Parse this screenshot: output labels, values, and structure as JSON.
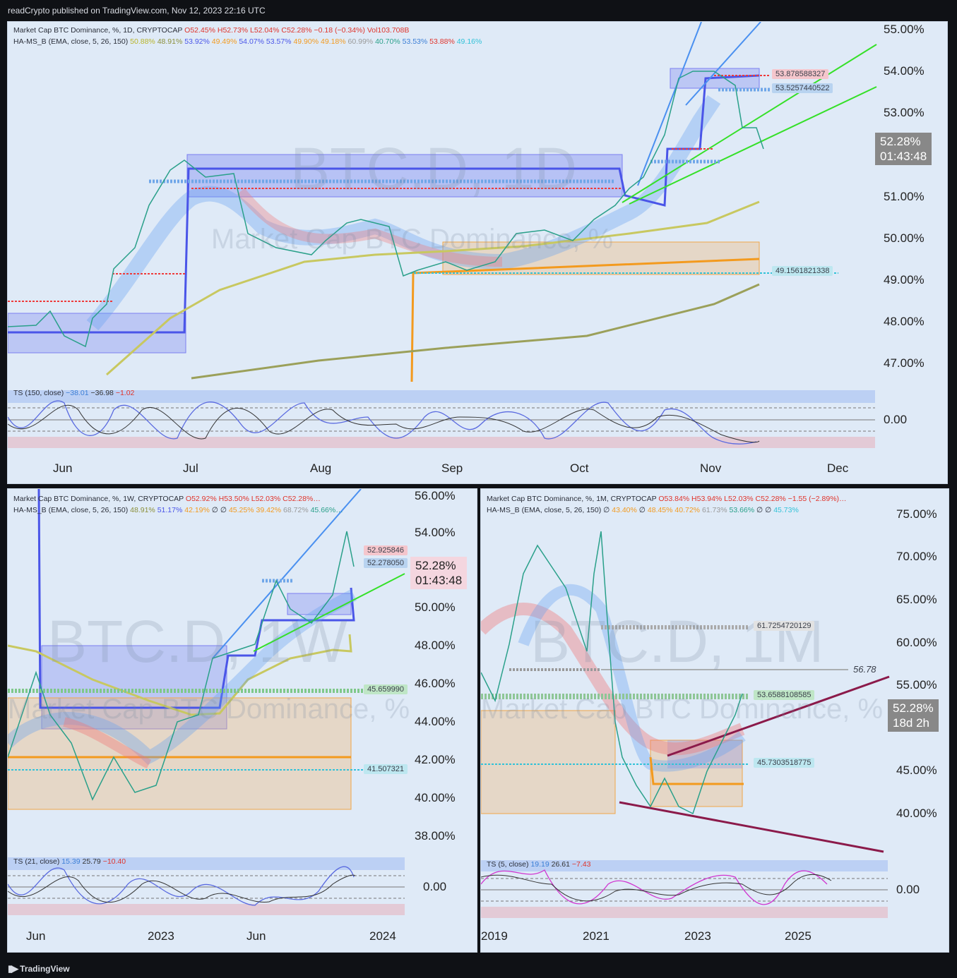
{
  "header": {
    "published": "readCrypto published on TradingView.com, Nov 12, 2023 22:16 UTC"
  },
  "footer": {
    "brand": "TradingView"
  },
  "panel_daily": {
    "title": "Market Cap BTC Dominance, %, 1D, CRYPTOCAP",
    "ohlc": {
      "o": "O52.45%",
      "h": "H52.73%",
      "l": "L52.04%",
      "c": "C52.28%",
      "chg": "−0.18 (−0.34%)",
      "vol": "Vol103.708B"
    },
    "indicator": "HA-MS_B (EMA, close, 5, 26, 150)",
    "indicator_values": [
      "50.88%",
      "48.91%",
      "53.92%",
      "49.49%",
      "54.07%",
      "53.57%",
      "49.90%",
      "49.18%",
      "60.99%",
      "40.70%",
      "53.53%",
      "53.88%",
      "49.16%"
    ],
    "watermark_big": "BTC.D, 1D",
    "watermark_small": "Market Cap BTC Dominance, %",
    "y_ticks": [
      "55.00%",
      "54.00%",
      "53.00%",
      "51.00%",
      "50.00%",
      "49.00%",
      "48.00%",
      "47.00%"
    ],
    "x_ticks": [
      "Jun",
      "Jul",
      "Aug",
      "Sep",
      "Oct",
      "Nov",
      "Dec"
    ],
    "price": "52.28%",
    "countdown": "01:43:48",
    "levels": [
      "53.878588327",
      "53.5257440522",
      "49.1561821338"
    ],
    "ts_label": "TS (150, close)",
    "ts_values": [
      "−38.01",
      "−36.98",
      "−1.02"
    ],
    "ts_zero": "0.00"
  },
  "panel_weekly": {
    "title": "Market Cap BTC Dominance, %, 1W, CRYPTOCAP",
    "ohlc": {
      "o": "O52.92%",
      "h": "H53.50%",
      "l": "L52.03%",
      "c": "C52.28%…"
    },
    "indicator": "HA-MS_B (EMA, close, 5, 26, 150)",
    "indicator_values": [
      "48.91%",
      "51.17%",
      "42.19%",
      "∅",
      "∅",
      "45.25%",
      "39.42%",
      "68.72%",
      "45.66%…"
    ],
    "watermark_big": "BTC.D, 1W",
    "watermark_small": "Market Cap BTC Dominance, %",
    "y_ticks": [
      "56.00%",
      "54.00%",
      "50.00%",
      "48.00%",
      "46.00%",
      "44.00%",
      "42.00%",
      "40.00%",
      "38.00%"
    ],
    "x_ticks": [
      "Jun",
      "2023",
      "Jun",
      "2024"
    ],
    "price": "52.28%",
    "countdown": "01:43:48",
    "levels": [
      "52.925846",
      "52.278050",
      "45.659990",
      "41.507321"
    ],
    "ts_label": "TS (21, close)",
    "ts_values": [
      "15.39",
      "25.79",
      "−10.40"
    ],
    "ts_zero": "0.00"
  },
  "panel_monthly": {
    "title": "Market Cap BTC Dominance, %, 1M, CRYPTOCAP",
    "ohlc": {
      "o": "O53.84%",
      "h": "H53.94%",
      "l": "L52.03%",
      "c": "C52.28%",
      "chg": "−1.55 (−2.89%)…"
    },
    "indicator": "HA-MS_B (EMA, close, 5, 26, 150)",
    "indicator_values": [
      "∅",
      "43.40%",
      "∅",
      "48.45%",
      "40.72%",
      "61.73%",
      "53.66%",
      "∅",
      "∅",
      "45.73%"
    ],
    "watermark_big": "BTC.D, 1M",
    "watermark_small": "Market Cap BTC Dominance, %",
    "y_ticks": [
      "75.00%",
      "70.00%",
      "65.00%",
      "60.00%",
      "55.00%",
      "45.00%",
      "40.00%"
    ],
    "x_ticks": [
      "2019",
      "2021",
      "2023",
      "2025"
    ],
    "price": "52.28%",
    "countdown": "18d 2h",
    "levels": [
      "61.7254720129",
      "53.6588108585",
      "45.7303518775"
    ],
    "line_label": "56.78",
    "ts_label": "TS (5, close)",
    "ts_values": [
      "19.19",
      "26.61",
      "−7.43"
    ],
    "ts_zero": "0.00"
  }
}
